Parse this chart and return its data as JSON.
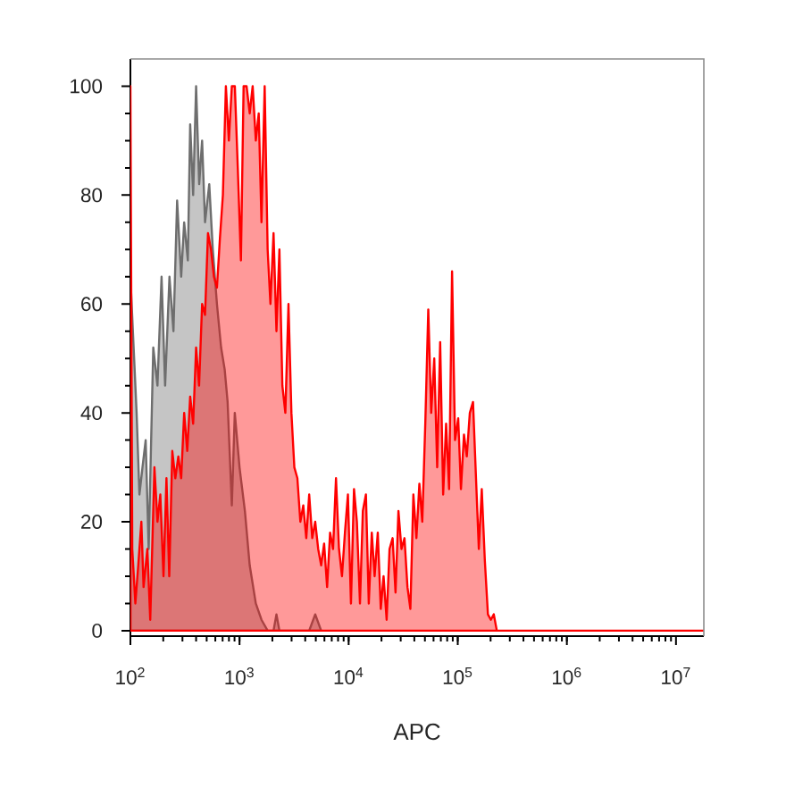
{
  "chart_data": {
    "type": "area",
    "xlabel": "APC",
    "log": "x",
    "xlim": [
      100,
      18000000
    ],
    "ylim": [
      -1,
      105
    ],
    "xticks": [
      {
        "value": 100,
        "label": "10$^{2}$"
      },
      {
        "value": 1000,
        "label": "10$^{3}$"
      },
      {
        "value": 10000,
        "label": "10$^{4}$"
      },
      {
        "value": 100000,
        "label": "10$^{5}$"
      },
      {
        "value": 1000000,
        "label": "10$^{6}$"
      },
      {
        "value": 10000000,
        "label": "10$^{7}$"
      }
    ],
    "yticks": [
      0,
      20,
      40,
      60,
      80,
      100
    ],
    "series": [
      {
        "color": "#6e6e6e",
        "x": [
          100,
          114,
          121,
          129,
          138,
          147,
          162,
          177,
          193,
          208,
          228,
          248,
          268,
          292,
          311,
          336,
          353,
          376,
          400,
          427,
          454,
          483,
          528,
          569,
          621,
          678,
          731,
          778,
          850,
          905,
          1000,
          1120,
          1240,
          1410,
          1590,
          1810,
          2050,
          2180,
          2320,
          4350,
          4940,
          5600
        ],
        "values": [
          65,
          40,
          25,
          30,
          35,
          15,
          52,
          45,
          65,
          45,
          65,
          55,
          79,
          65,
          75,
          68,
          93,
          80,
          100,
          82,
          90,
          75,
          82,
          70,
          60,
          52,
          48,
          42,
          23,
          40,
          30,
          22,
          12,
          5,
          2,
          0,
          0,
          3,
          0,
          0,
          3,
          0
        ]
      },
      {
        "color": "#ff0000",
        "x": [
          100,
          104,
          111,
          118,
          126,
          132,
          143,
          152,
          166,
          177,
          188,
          201,
          214,
          227,
          242,
          258,
          275,
          292,
          311,
          332,
          353,
          376,
          400,
          426,
          454,
          483,
          514,
          548,
          583,
          621,
          661,
          704,
          750,
          799,
          850,
          906,
          964,
          1030,
          1090,
          1160,
          1240,
          1320,
          1410,
          1500,
          1590,
          1700,
          1810,
          1920,
          2050,
          2180,
          2320,
          2470,
          2630,
          2810,
          2990,
          3180,
          3390,
          3610,
          3840,
          4090,
          4350,
          4640,
          4940,
          5260,
          5600,
          5960,
          6350,
          6760,
          7200,
          7660,
          8160,
          8690,
          9250,
          9850,
          10500,
          11200,
          11900,
          12700,
          13500,
          14400,
          15300,
          16300,
          17300,
          18500,
          19700,
          20900,
          22300,
          23700,
          25300,
          26900,
          28600,
          30500,
          32500,
          34600,
          36800,
          39200,
          41800,
          44500,
          47300,
          50400,
          53700,
          57100,
          60900,
          64800,
          69000,
          73500,
          78200,
          83300,
          88700,
          94400,
          101000,
          107000,
          114000,
          121000,
          129000,
          138000,
          147000,
          156000,
          166000,
          177000,
          189000,
          201000,
          214000,
          228000,
          18000000
        ],
        "values": [
          100,
          15,
          5,
          12,
          20,
          8,
          15,
          2,
          30,
          20,
          25,
          10,
          28,
          10,
          33,
          28,
          32,
          28,
          40,
          33,
          43,
          38,
          52,
          45,
          60,
          58,
          73,
          70,
          65,
          63,
          72,
          80,
          100,
          90,
          100,
          100,
          85,
          68,
          100,
          100,
          95,
          100,
          90,
          95,
          75,
          100,
          70,
          60,
          73,
          55,
          70,
          45,
          40,
          60,
          40,
          30,
          28,
          20,
          23,
          17,
          25,
          17,
          20,
          15,
          12,
          16,
          8,
          18,
          15,
          28,
          15,
          10,
          18,
          25,
          5,
          26,
          20,
          5,
          22,
          25,
          5,
          18,
          10,
          18,
          4,
          10,
          2,
          15,
          17,
          7,
          22,
          15,
          17,
          8,
          4,
          25,
          17,
          27,
          20,
          38,
          59,
          40,
          50,
          30,
          53,
          25,
          38,
          26,
          66,
          35,
          39,
          26,
          36,
          32,
          40,
          42,
          28,
          15,
          26,
          13,
          3,
          2,
          3,
          0,
          0
        ]
      }
    ]
  }
}
